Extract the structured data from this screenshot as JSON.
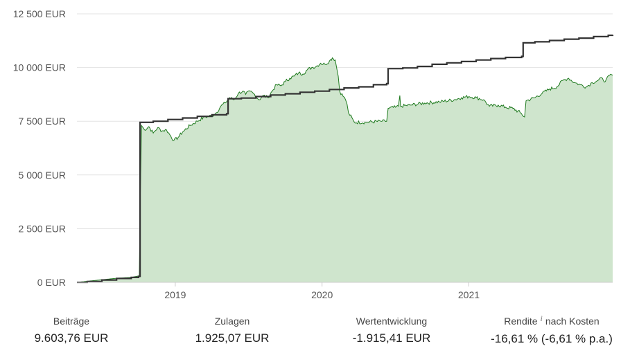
{
  "chart_data": {
    "type": "area",
    "currency": "EUR",
    "y_ticks": [
      "0 EUR",
      "2 500 EUR",
      "5 000 EUR",
      "7 500 EUR",
      "10 000 EUR",
      "12 500 EUR"
    ],
    "x_ticks": [
      "2019",
      "2020",
      "2021"
    ],
    "ylim": [
      0,
      12500
    ],
    "xlim": [
      2018.33,
      2021.98
    ],
    "grid": true,
    "series": [
      {
        "role": "portfolio_value",
        "style": "area",
        "color": "#1f7a1f",
        "fill": "#cfe5cd",
        "points": [
          [
            2018.33,
            0
          ],
          [
            2018.4,
            50
          ],
          [
            2018.5,
            120
          ],
          [
            2018.6,
            190
          ],
          [
            2018.7,
            230
          ],
          [
            2018.74,
            280
          ],
          [
            2018.755,
            300
          ],
          [
            2018.76,
            3400
          ],
          [
            2018.77,
            7300
          ],
          [
            2018.79,
            7100
          ],
          [
            2018.82,
            7250
          ],
          [
            2018.85,
            6950
          ],
          [
            2018.88,
            7200
          ],
          [
            2018.91,
            7050
          ],
          [
            2018.94,
            7100
          ],
          [
            2018.97,
            6800
          ],
          [
            2018.99,
            6600
          ],
          [
            2019.02,
            6750
          ],
          [
            2019.05,
            7000
          ],
          [
            2019.1,
            7300
          ],
          [
            2019.15,
            7500
          ],
          [
            2019.2,
            7700
          ],
          [
            2019.25,
            7750
          ],
          [
            2019.28,
            7900
          ],
          [
            2019.31,
            8200
          ],
          [
            2019.34,
            8350
          ],
          [
            2019.37,
            8600
          ],
          [
            2019.4,
            8500
          ],
          [
            2019.43,
            8800
          ],
          [
            2019.46,
            8900
          ],
          [
            2019.48,
            8750
          ],
          [
            2019.51,
            8900
          ],
          [
            2019.54,
            8750
          ],
          [
            2019.57,
            8500
          ],
          [
            2019.6,
            8700
          ],
          [
            2019.63,
            8600
          ],
          [
            2019.66,
            8900
          ],
          [
            2019.69,
            9200
          ],
          [
            2019.72,
            9150
          ],
          [
            2019.75,
            9350
          ],
          [
            2019.78,
            9500
          ],
          [
            2019.81,
            9600
          ],
          [
            2019.84,
            9750
          ],
          [
            2019.87,
            9700
          ],
          [
            2019.9,
            9900
          ],
          [
            2019.93,
            10000
          ],
          [
            2019.96,
            10050
          ],
          [
            2019.99,
            10200
          ],
          [
            2020.02,
            10150
          ],
          [
            2020.05,
            10300
          ],
          [
            2020.07,
            10450
          ],
          [
            2020.09,
            10350
          ],
          [
            2020.11,
            9600
          ],
          [
            2020.12,
            8900
          ],
          [
            2020.16,
            8500
          ],
          [
            2020.17,
            8300
          ],
          [
            2020.18,
            7900
          ],
          [
            2020.22,
            7450
          ],
          [
            2020.3,
            7450
          ],
          [
            2020.4,
            7500
          ],
          [
            2020.44,
            7500
          ],
          [
            2020.45,
            8100
          ],
          [
            2020.5,
            8150
          ],
          [
            2020.52,
            8200
          ],
          [
            2020.53,
            8700
          ],
          [
            2020.535,
            8200
          ],
          [
            2020.6,
            8250
          ],
          [
            2020.7,
            8350
          ],
          [
            2020.8,
            8400
          ],
          [
            2020.9,
            8500
          ],
          [
            2020.95,
            8600
          ],
          [
            2021.0,
            8650
          ],
          [
            2021.05,
            8600
          ],
          [
            2021.1,
            8500
          ],
          [
            2021.14,
            8200
          ],
          [
            2021.2,
            8250
          ],
          [
            2021.25,
            8150
          ],
          [
            2021.3,
            8100
          ],
          [
            2021.35,
            7900
          ],
          [
            2021.38,
            7700
          ],
          [
            2021.39,
            8450
          ],
          [
            2021.45,
            8600
          ],
          [
            2021.5,
            8800
          ],
          [
            2021.55,
            9000
          ],
          [
            2021.6,
            9100
          ],
          [
            2021.64,
            9400
          ],
          [
            2021.68,
            9500
          ],
          [
            2021.72,
            9300
          ],
          [
            2021.76,
            9200
          ],
          [
            2021.8,
            9100
          ],
          [
            2021.84,
            9300
          ],
          [
            2021.88,
            9400
          ],
          [
            2021.91,
            9500
          ],
          [
            2021.93,
            9350
          ],
          [
            2021.96,
            9650
          ],
          [
            2021.98,
            9650
          ]
        ]
      },
      {
        "role": "contributions",
        "style": "step-line",
        "color": "#333333",
        "points": [
          [
            2018.33,
            0
          ],
          [
            2018.4,
            40
          ],
          [
            2018.5,
            110
          ],
          [
            2018.6,
            180
          ],
          [
            2018.7,
            230
          ],
          [
            2018.75,
            280
          ],
          [
            2018.76,
            7450
          ],
          [
            2018.85,
            7500
          ],
          [
            2018.95,
            7580
          ],
          [
            2019.05,
            7650
          ],
          [
            2019.15,
            7730
          ],
          [
            2019.25,
            7800
          ],
          [
            2019.35,
            7850
          ],
          [
            2019.36,
            8550
          ],
          [
            2019.45,
            8580
          ],
          [
            2019.55,
            8650
          ],
          [
            2019.65,
            8720
          ],
          [
            2019.75,
            8780
          ],
          [
            2019.85,
            8850
          ],
          [
            2019.95,
            8900
          ],
          [
            2020.05,
            8980
          ],
          [
            2020.15,
            9050
          ],
          [
            2020.25,
            9100
          ],
          [
            2020.35,
            9200
          ],
          [
            2020.44,
            9250
          ],
          [
            2020.45,
            9950
          ],
          [
            2020.55,
            9980
          ],
          [
            2020.65,
            10050
          ],
          [
            2020.75,
            10150
          ],
          [
            2020.85,
            10220
          ],
          [
            2020.95,
            10280
          ],
          [
            2021.05,
            10350
          ],
          [
            2021.15,
            10420
          ],
          [
            2021.25,
            10470
          ],
          [
            2021.36,
            10520
          ],
          [
            2021.37,
            11150
          ],
          [
            2021.45,
            11200
          ],
          [
            2021.55,
            11260
          ],
          [
            2021.65,
            11320
          ],
          [
            2021.75,
            11370
          ],
          [
            2021.85,
            11440
          ],
          [
            2021.95,
            11500
          ],
          [
            2021.98,
            11520
          ]
        ]
      }
    ]
  },
  "stats": [
    {
      "label": "Beiträge",
      "value": "9.603,76 EUR"
    },
    {
      "label": "Zulagen",
      "value": "1.925,07 EUR"
    },
    {
      "label": "Wertentwicklung",
      "value": "-1.915,41 EUR"
    },
    {
      "label": "Rendite",
      "label_suffix": "nach Kosten",
      "info_glyph": "i",
      "value": "-16,61 % (-6,61 % p.a.)"
    }
  ]
}
